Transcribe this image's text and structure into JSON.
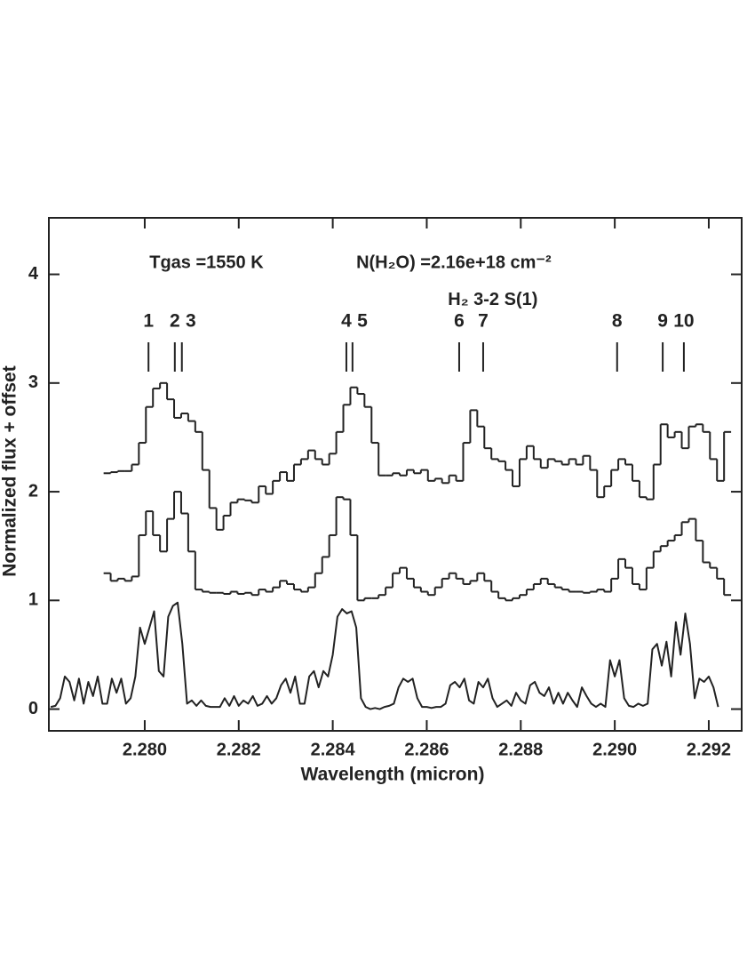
{
  "chart_data": {
    "type": "spectrum",
    "xlabel": "Wavelength (micron)",
    "ylabel": "Normalized flux + offset",
    "xlim": [
      2.27796,
      2.2927
    ],
    "ylim": [
      -0.2,
      4.52
    ],
    "xticks": [
      {
        "value": 2.28,
        "label": "2.280"
      },
      {
        "value": 2.282,
        "label": "2.282"
      },
      {
        "value": 2.284,
        "label": "2.284"
      },
      {
        "value": 2.286,
        "label": "2.286"
      },
      {
        "value": 2.288,
        "label": "2.288"
      },
      {
        "value": 2.29,
        "label": "2.290"
      },
      {
        "value": 2.292,
        "label": "2.292"
      }
    ],
    "yticks": [
      0,
      1,
      2,
      3,
      4
    ],
    "annotations": [
      {
        "text": "Tgas =1550 K",
        "x": 2.2801,
        "y": 4.1
      },
      {
        "text": "N(H₂O) =2.16e+18 cm⁻²",
        "x": 2.2845,
        "y": 4.1
      },
      {
        "text": "H₂ 3-2 S(1)",
        "x": 2.28645,
        "y": 3.76
      }
    ],
    "line_markers": [
      {
        "label": "1",
        "x": 2.28008
      },
      {
        "label": "2",
        "x": 2.28064
      },
      {
        "label": "3",
        "x": 2.28079
      },
      {
        "label": "4",
        "x": 2.28429
      },
      {
        "label": "5",
        "x": 2.28442
      },
      {
        "label": "6",
        "x": 2.28669
      },
      {
        "label": "7",
        "x": 2.2872
      },
      {
        "label": "8",
        "x": 2.29005
      },
      {
        "label": "9",
        "x": 2.29102
      },
      {
        "label": "10",
        "x": 2.29147
      }
    ],
    "series": [
      {
        "style": "steps",
        "color": "#222222",
        "x": [
          2.2792,
          2.27935,
          2.2795,
          2.27965,
          2.2798,
          2.27995,
          2.2801,
          2.28025,
          2.2804,
          2.28055,
          2.2807,
          2.28085,
          2.281,
          2.28115,
          2.2813,
          2.28145,
          2.2816,
          2.28175,
          2.2819,
          2.28205,
          2.2822,
          2.28235,
          2.2825,
          2.28265,
          2.2828,
          2.28295,
          2.2831,
          2.28325,
          2.2834,
          2.28355,
          2.2837,
          2.28385,
          2.284,
          2.28415,
          2.2843,
          2.28445,
          2.2846,
          2.28475,
          2.2849,
          2.28505,
          2.2852,
          2.28535,
          2.2855,
          2.28565,
          2.2858,
          2.28595,
          2.2861,
          2.28625,
          2.2864,
          2.28655,
          2.2867,
          2.28685,
          2.287,
          2.28715,
          2.2873,
          2.28745,
          2.2876,
          2.28775,
          2.2879,
          2.28805,
          2.2882,
          2.28835,
          2.2885,
          2.28865,
          2.2888,
          2.28895,
          2.2891,
          2.28925,
          2.2894,
          2.28955,
          2.2897,
          2.28985,
          2.29,
          2.29015,
          2.2903,
          2.29045,
          2.2906,
          2.29075,
          2.2909,
          2.29105,
          2.2912,
          2.29135,
          2.2915,
          2.29165,
          2.2918,
          2.29195,
          2.2921,
          2.29225,
          2.2924
        ],
        "values": [
          2.17,
          2.18,
          2.19,
          2.19,
          2.25,
          2.45,
          2.78,
          2.95,
          3.0,
          2.85,
          2.68,
          2.72,
          2.65,
          2.55,
          2.2,
          1.85,
          1.65,
          1.78,
          1.9,
          1.93,
          1.92,
          1.9,
          2.05,
          1.98,
          2.1,
          2.18,
          2.1,
          2.25,
          2.3,
          2.38,
          2.3,
          2.25,
          2.35,
          2.55,
          2.8,
          2.96,
          2.9,
          2.78,
          2.45,
          2.15,
          2.15,
          2.17,
          2.15,
          2.2,
          2.17,
          2.2,
          2.1,
          2.12,
          2.08,
          2.15,
          2.1,
          2.45,
          2.75,
          2.6,
          2.4,
          2.3,
          2.28,
          2.2,
          2.05,
          2.3,
          2.42,
          2.3,
          2.22,
          2.3,
          2.28,
          2.25,
          2.3,
          2.25,
          2.33,
          2.2,
          1.95,
          2.05,
          2.2,
          2.3,
          2.25,
          2.1,
          1.95,
          1.93,
          2.25,
          2.62,
          2.5,
          2.55,
          2.4,
          2.6,
          2.62,
          2.55,
          2.3,
          2.1,
          2.55
        ]
      },
      {
        "style": "steps",
        "color": "#222222",
        "x": [
          2.2792,
          2.27935,
          2.2795,
          2.27965,
          2.2798,
          2.27995,
          2.2801,
          2.28025,
          2.2804,
          2.28055,
          2.2807,
          2.28085,
          2.281,
          2.28115,
          2.2813,
          2.28145,
          2.2816,
          2.28175,
          2.2819,
          2.28205,
          2.2822,
          2.28235,
          2.2825,
          2.28265,
          2.2828,
          2.28295,
          2.2831,
          2.28325,
          2.2834,
          2.28355,
          2.2837,
          2.28385,
          2.284,
          2.28415,
          2.2843,
          2.28445,
          2.2846,
          2.28475,
          2.2849,
          2.28505,
          2.2852,
          2.28535,
          2.2855,
          2.28565,
          2.2858,
          2.28595,
          2.2861,
          2.28625,
          2.2864,
          2.28655,
          2.2867,
          2.28685,
          2.287,
          2.28715,
          2.2873,
          2.28745,
          2.2876,
          2.28775,
          2.2879,
          2.28805,
          2.2882,
          2.28835,
          2.2885,
          2.28865,
          2.2888,
          2.28895,
          2.2891,
          2.28925,
          2.2894,
          2.28955,
          2.2897,
          2.28985,
          2.29,
          2.29015,
          2.2903,
          2.29045,
          2.2906,
          2.29075,
          2.2909,
          2.29105,
          2.2912,
          2.29135,
          2.2915,
          2.29165,
          2.2918,
          2.29195,
          2.2921,
          2.29225,
          2.2924
        ],
        "values": [
          1.25,
          1.18,
          1.2,
          1.18,
          1.22,
          1.6,
          1.82,
          1.6,
          1.45,
          1.75,
          2.0,
          1.8,
          1.45,
          1.1,
          1.08,
          1.07,
          1.07,
          1.06,
          1.08,
          1.06,
          1.07,
          1.05,
          1.1,
          1.08,
          1.12,
          1.18,
          1.15,
          1.1,
          1.08,
          1.12,
          1.25,
          1.4,
          1.6,
          1.95,
          1.93,
          1.6,
          1.0,
          1.02,
          1.02,
          1.05,
          1.12,
          1.25,
          1.3,
          1.2,
          1.12,
          1.08,
          1.05,
          1.12,
          1.2,
          1.25,
          1.2,
          1.15,
          1.18,
          1.25,
          1.18,
          1.08,
          1.02,
          1.0,
          1.02,
          1.05,
          1.1,
          1.15,
          1.2,
          1.15,
          1.12,
          1.1,
          1.08,
          1.08,
          1.07,
          1.08,
          1.1,
          1.08,
          1.2,
          1.38,
          1.3,
          1.15,
          1.1,
          1.3,
          1.45,
          1.5,
          1.55,
          1.6,
          1.72,
          1.75,
          1.55,
          1.35,
          1.3,
          1.2,
          1.05
        ]
      },
      {
        "style": "line",
        "color": "#222222",
        "x": [
          2.278,
          2.2781,
          2.2782,
          2.2783,
          2.2784,
          2.2785,
          2.2786,
          2.2787,
          2.2788,
          2.2789,
          2.279,
          2.2791,
          2.2792,
          2.2793,
          2.2794,
          2.2795,
          2.2796,
          2.2797,
          2.2798,
          2.2799,
          2.28,
          2.2801,
          2.2802,
          2.2803,
          2.2804,
          2.2805,
          2.2806,
          2.2807,
          2.2808,
          2.2809,
          2.281,
          2.2811,
          2.2812,
          2.2813,
          2.2814,
          2.2815,
          2.2816,
          2.2817,
          2.2818,
          2.2819,
          2.282,
          2.2821,
          2.2822,
          2.2823,
          2.2824,
          2.2825,
          2.2826,
          2.2827,
          2.2828,
          2.2829,
          2.283,
          2.2831,
          2.2832,
          2.2833,
          2.2834,
          2.2835,
          2.2836,
          2.2837,
          2.2838,
          2.2839,
          2.284,
          2.2841,
          2.2842,
          2.2843,
          2.2844,
          2.2845,
          2.2846,
          2.2847,
          2.2848,
          2.2849,
          2.285,
          2.2851,
          2.2852,
          2.2853,
          2.2854,
          2.2855,
          2.2856,
          2.2857,
          2.2858,
          2.2859,
          2.286,
          2.2861,
          2.2862,
          2.2863,
          2.2864,
          2.2865,
          2.2866,
          2.2867,
          2.2868,
          2.2869,
          2.287,
          2.2871,
          2.2872,
          2.2873,
          2.2874,
          2.2875,
          2.2876,
          2.2877,
          2.2878,
          2.2879,
          2.288,
          2.2881,
          2.2882,
          2.2883,
          2.2884,
          2.2885,
          2.2886,
          2.2887,
          2.2888,
          2.2889,
          2.289,
          2.2891,
          2.2892,
          2.2893,
          2.2894,
          2.2895,
          2.2896,
          2.2897,
          2.2898,
          2.2899,
          2.29,
          2.2901,
          2.2902,
          2.2903,
          2.2904,
          2.2905,
          2.2906,
          2.2907,
          2.2908,
          2.2909,
          2.291,
          2.2911,
          2.2912,
          2.2913,
          2.2914,
          2.2915,
          2.2916,
          2.2917,
          2.2918,
          2.2919,
          2.292,
          2.2921,
          2.2922
        ],
        "values": [
          0.02,
          0.03,
          0.1,
          0.3,
          0.25,
          0.08,
          0.28,
          0.05,
          0.25,
          0.12,
          0.3,
          0.05,
          0.05,
          0.28,
          0.15,
          0.28,
          0.05,
          0.1,
          0.3,
          0.75,
          0.6,
          0.75,
          0.9,
          0.35,
          0.3,
          0.85,
          0.95,
          0.98,
          0.6,
          0.05,
          0.08,
          0.03,
          0.08,
          0.03,
          0.02,
          0.02,
          0.02,
          0.1,
          0.03,
          0.12,
          0.03,
          0.08,
          0.05,
          0.12,
          0.03,
          0.05,
          0.12,
          0.05,
          0.1,
          0.22,
          0.28,
          0.15,
          0.3,
          0.05,
          0.05,
          0.3,
          0.35,
          0.2,
          0.35,
          0.3,
          0.5,
          0.85,
          0.92,
          0.88,
          0.9,
          0.75,
          0.1,
          0.02,
          0.0,
          0.01,
          0.0,
          0.02,
          0.03,
          0.05,
          0.2,
          0.28,
          0.25,
          0.28,
          0.1,
          0.02,
          0.02,
          0.01,
          0.02,
          0.02,
          0.05,
          0.22,
          0.25,
          0.2,
          0.28,
          0.08,
          0.05,
          0.25,
          0.2,
          0.28,
          0.1,
          0.02,
          0.05,
          0.08,
          0.03,
          0.15,
          0.08,
          0.05,
          0.22,
          0.25,
          0.15,
          0.12,
          0.2,
          0.05,
          0.15,
          0.05,
          0.15,
          0.08,
          0.02,
          0.2,
          0.12,
          0.05,
          0.02,
          0.05,
          0.02,
          0.45,
          0.3,
          0.45,
          0.1,
          0.03,
          0.02,
          0.05,
          0.03,
          0.05,
          0.55,
          0.6,
          0.4,
          0.62,
          0.3,
          0.8,
          0.5,
          0.88,
          0.6,
          0.1,
          0.28,
          0.25,
          0.3,
          0.2,
          0.02
        ]
      }
    ]
  }
}
